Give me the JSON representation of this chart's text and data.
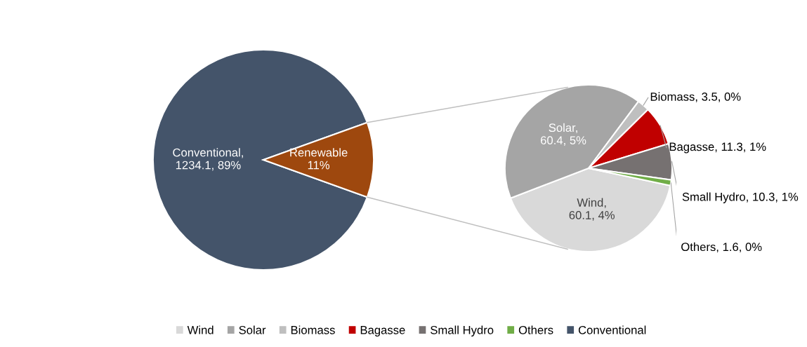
{
  "chart_data": [
    {
      "type": "pie",
      "categories": [
        "Conventional",
        null
      ],
      "values": [
        89,
        11
      ],
      "colors": [
        "#44546a",
        "#9e480e"
      ],
      "value_labels": [
        "Conventional, 1234.1, 89%",
        "Renewable 11%"
      ],
      "legend": "bottom"
    },
    {
      "type": "pie",
      "categories": [
        "Wind",
        "Solar",
        "Biomass",
        "Bagasse",
        "Small Hydro",
        "Others"
      ],
      "values": [
        60.1,
        60.4,
        3.5,
        11.3,
        10.3,
        1.6
      ],
      "colors": [
        "#d9d9d9",
        "#a5a5a5",
        "#bfbfbf",
        "#c00000",
        "#767171",
        "#70ad47"
      ],
      "value_labels": [
        "Wind, 60.1, 4%",
        "Solar, 60.4, 5%",
        "Biomass, 3.5, 0%",
        "Bagasse, 11.3, 1%",
        "Small Hydro, 10.3, 1%",
        "Others, 1.6, 0%"
      ],
      "legend": "bottom"
    }
  ]
}
